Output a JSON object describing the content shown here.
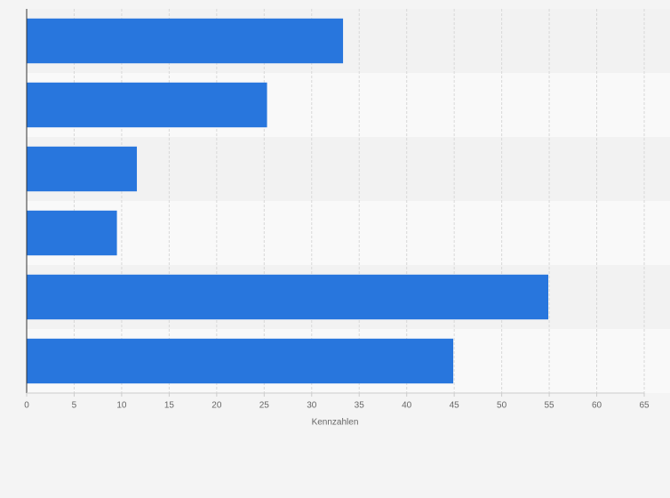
{
  "chart_data": {
    "type": "bar",
    "orientation": "horizontal",
    "categories": [
      null,
      null,
      null,
      null,
      null,
      null
    ],
    "values": [
      33.3,
      25.3,
      11.6,
      9.5,
      54.9,
      44.9
    ],
    "color": "#2876dd",
    "x_label": "Kennzahlen",
    "xlim": [
      0,
      65
    ],
    "xticks": [
      0,
      5,
      10,
      15,
      20,
      25,
      30,
      35,
      40,
      45,
      50,
      55,
      60,
      65
    ],
    "grid": true
  }
}
